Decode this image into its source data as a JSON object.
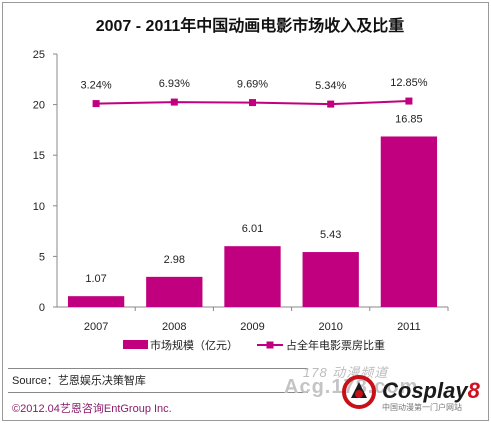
{
  "chart_data": {
    "type": "bar",
    "title": "2007 - 2011年中国动画电影市场收入及比重",
    "categories": [
      "2007",
      "2008",
      "2009",
      "2010",
      "2011"
    ],
    "ylim": [
      0,
      25
    ],
    "yticks": [
      0,
      5,
      10,
      15,
      20,
      25
    ],
    "series": [
      {
        "name": "市场规模（亿元）",
        "type": "bar",
        "values": [
          1.07,
          2.98,
          6.01,
          5.43,
          16.85
        ],
        "labels": [
          "1.07",
          "2.98",
          "6.01",
          "5.43",
          "16.85"
        ]
      },
      {
        "name": "占全年电影票房比重",
        "type": "line",
        "values": [
          20.1,
          20.25,
          20.2,
          20.05,
          20.35
        ],
        "labels": [
          "3.24%",
          "6.93%",
          "9.69%",
          "5.34%",
          "12.85%"
        ]
      }
    ],
    "colors": {
      "bar": "#c0007f",
      "line": "#c0007f"
    },
    "grid": false,
    "legend_position": "bottom"
  },
  "footer": {
    "source": "Source：艺恩娱乐决策智库",
    "copyright": "©2012.04艺恩咨询EntGroup Inc."
  },
  "watermark": {
    "line1": "178 动漫频道",
    "line2": "Acg.178.com",
    "brand": "Cosplay",
    "brand_digit": "8",
    "tagline": "中国动漫第一门户网站"
  }
}
